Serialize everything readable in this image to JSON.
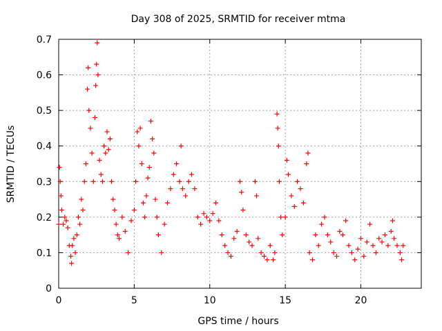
{
  "chart_data": {
    "type": "scatter",
    "title": "Day 308 of 2025, SRMTID for receiver mtma",
    "xlabel": "GPS time / hours",
    "ylabel": "SRMTID / TECUs",
    "xlim": [
      0,
      24
    ],
    "ylim": [
      0,
      0.7
    ],
    "x_ticks": [
      0,
      5,
      10,
      15,
      20
    ],
    "x_tick_labels": [
      "0",
      "5",
      "10",
      "15",
      "20"
    ],
    "y_ticks": [
      0,
      0.1,
      0.2,
      0.3,
      0.4,
      0.5,
      0.6,
      0.7
    ],
    "y_tick_labels": [
      "0",
      "0.1",
      "0.2",
      "0.3",
      "0.4",
      "0.5",
      "0.6",
      "0.7"
    ],
    "grid": true,
    "marker": "plus",
    "color": "#ff0000",
    "series": [
      {
        "name": "mtma",
        "points": [
          [
            0.0,
            0.18
          ],
          [
            0.05,
            0.34
          ],
          [
            0.1,
            0.3
          ],
          [
            0.15,
            0.26
          ],
          [
            0.2,
            0.22
          ],
          [
            0.3,
            0.18
          ],
          [
            0.4,
            0.2
          ],
          [
            0.5,
            0.19
          ],
          [
            0.6,
            0.17
          ],
          [
            0.7,
            0.12
          ],
          [
            0.8,
            0.09
          ],
          [
            0.85,
            0.07
          ],
          [
            0.9,
            0.12
          ],
          [
            1.0,
            0.14
          ],
          [
            1.1,
            0.1
          ],
          [
            1.2,
            0.15
          ],
          [
            1.3,
            0.2
          ],
          [
            1.4,
            0.18
          ],
          [
            1.5,
            0.25
          ],
          [
            1.6,
            0.22
          ],
          [
            1.7,
            0.3
          ],
          [
            1.8,
            0.35
          ],
          [
            1.9,
            0.56
          ],
          [
            1.95,
            0.62
          ],
          [
            2.0,
            0.5
          ],
          [
            2.1,
            0.45
          ],
          [
            2.2,
            0.38
          ],
          [
            2.3,
            0.3
          ],
          [
            2.4,
            0.48
          ],
          [
            2.45,
            0.57
          ],
          [
            2.5,
            0.63
          ],
          [
            2.55,
            0.69
          ],
          [
            2.6,
            0.6
          ],
          [
            2.7,
            0.36
          ],
          [
            2.8,
            0.32
          ],
          [
            2.9,
            0.3
          ],
          [
            3.0,
            0.4
          ],
          [
            3.1,
            0.38
          ],
          [
            3.2,
            0.44
          ],
          [
            3.3,
            0.39
          ],
          [
            3.4,
            0.42
          ],
          [
            3.5,
            0.3
          ],
          [
            3.6,
            0.25
          ],
          [
            3.7,
            0.22
          ],
          [
            3.8,
            0.18
          ],
          [
            3.9,
            0.15
          ],
          [
            4.0,
            0.14
          ],
          [
            4.2,
            0.2
          ],
          [
            4.4,
            0.16
          ],
          [
            4.6,
            0.1
          ],
          [
            4.8,
            0.19
          ],
          [
            5.0,
            0.22
          ],
          [
            5.1,
            0.3
          ],
          [
            5.2,
            0.44
          ],
          [
            5.3,
            0.4
          ],
          [
            5.4,
            0.45
          ],
          [
            5.5,
            0.35
          ],
          [
            5.6,
            0.24
          ],
          [
            5.7,
            0.2
          ],
          [
            5.8,
            0.26
          ],
          [
            5.9,
            0.31
          ],
          [
            6.0,
            0.34
          ],
          [
            6.1,
            0.47
          ],
          [
            6.2,
            0.42
          ],
          [
            6.3,
            0.38
          ],
          [
            6.4,
            0.25
          ],
          [
            6.5,
            0.2
          ],
          [
            6.6,
            0.15
          ],
          [
            6.8,
            0.1
          ],
          [
            7.0,
            0.18
          ],
          [
            7.2,
            0.24
          ],
          [
            7.4,
            0.28
          ],
          [
            7.6,
            0.32
          ],
          [
            7.8,
            0.35
          ],
          [
            8.0,
            0.3
          ],
          [
            8.1,
            0.4
          ],
          [
            8.2,
            0.28
          ],
          [
            8.4,
            0.26
          ],
          [
            8.6,
            0.3
          ],
          [
            8.8,
            0.32
          ],
          [
            9.0,
            0.28
          ],
          [
            9.2,
            0.2
          ],
          [
            9.4,
            0.18
          ],
          [
            9.6,
            0.21
          ],
          [
            9.8,
            0.2
          ],
          [
            10.0,
            0.19
          ],
          [
            10.2,
            0.21
          ],
          [
            10.4,
            0.24
          ],
          [
            10.6,
            0.19
          ],
          [
            10.8,
            0.15
          ],
          [
            11.0,
            0.12
          ],
          [
            11.2,
            0.1
          ],
          [
            11.4,
            0.09
          ],
          [
            11.6,
            0.14
          ],
          [
            11.8,
            0.16
          ],
          [
            12.0,
            0.3
          ],
          [
            12.1,
            0.27
          ],
          [
            12.2,
            0.22
          ],
          [
            12.4,
            0.15
          ],
          [
            12.6,
            0.13
          ],
          [
            12.8,
            0.12
          ],
          [
            13.0,
            0.3
          ],
          [
            13.1,
            0.26
          ],
          [
            13.2,
            0.14
          ],
          [
            13.4,
            0.1
          ],
          [
            13.6,
            0.09
          ],
          [
            13.8,
            0.08
          ],
          [
            14.0,
            0.12
          ],
          [
            14.2,
            0.08
          ],
          [
            14.3,
            0.1
          ],
          [
            14.45,
            0.49
          ],
          [
            14.5,
            0.45
          ],
          [
            14.55,
            0.4
          ],
          [
            14.6,
            0.3
          ],
          [
            14.7,
            0.2
          ],
          [
            14.8,
            0.15
          ],
          [
            15.0,
            0.2
          ],
          [
            15.1,
            0.36
          ],
          [
            15.2,
            0.32
          ],
          [
            15.4,
            0.26
          ],
          [
            15.6,
            0.23
          ],
          [
            15.8,
            0.3
          ],
          [
            16.0,
            0.28
          ],
          [
            16.2,
            0.24
          ],
          [
            16.4,
            0.35
          ],
          [
            16.5,
            0.38
          ],
          [
            16.6,
            0.1
          ],
          [
            16.8,
            0.08
          ],
          [
            17.0,
            0.15
          ],
          [
            17.2,
            0.12
          ],
          [
            17.4,
            0.18
          ],
          [
            17.6,
            0.2
          ],
          [
            17.8,
            0.15
          ],
          [
            18.0,
            0.13
          ],
          [
            18.2,
            0.1
          ],
          [
            18.4,
            0.09
          ],
          [
            18.6,
            0.16
          ],
          [
            18.8,
            0.15
          ],
          [
            19.0,
            0.19
          ],
          [
            19.2,
            0.12
          ],
          [
            19.4,
            0.1
          ],
          [
            19.6,
            0.08
          ],
          [
            19.8,
            0.11
          ],
          [
            20.0,
            0.14
          ],
          [
            20.2,
            0.09
          ],
          [
            20.4,
            0.13
          ],
          [
            20.6,
            0.18
          ],
          [
            20.8,
            0.12
          ],
          [
            21.0,
            0.1
          ],
          [
            21.2,
            0.14
          ],
          [
            21.4,
            0.13
          ],
          [
            21.6,
            0.15
          ],
          [
            21.8,
            0.12
          ],
          [
            22.0,
            0.16
          ],
          [
            22.1,
            0.19
          ],
          [
            22.2,
            0.14
          ],
          [
            22.4,
            0.12
          ],
          [
            22.6,
            0.1
          ],
          [
            22.7,
            0.08
          ],
          [
            22.8,
            0.12
          ]
        ]
      }
    ]
  }
}
